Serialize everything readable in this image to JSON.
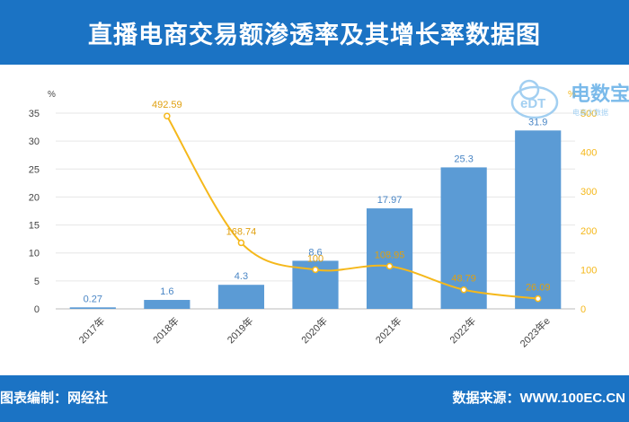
{
  "header": {
    "title": "直播电商交易额渗透率及其增长率数据图"
  },
  "watermark": {
    "logo_text": "eDT",
    "brand": "电数宝",
    "subtitle": "电商大数据"
  },
  "footer": {
    "left": "图表编制：网经社",
    "right": "数据来源：WWW.100EC.CN"
  },
  "colors": {
    "header": "#1b73c4",
    "bar": "#5b9bd5",
    "line": "#f5b81b",
    "label": "#4a86c5"
  },
  "chart_data": {
    "type": "bar",
    "categories": [
      "2017年",
      "2018年",
      "2019年",
      "2020年",
      "2021年",
      "2022年",
      "2023年e"
    ],
    "series": [
      {
        "type": "bar",
        "axis": "left",
        "values": [
          0.27,
          1.6,
          4.3,
          8.6,
          17.97,
          25.3,
          31.9
        ]
      },
      {
        "type": "line",
        "axis": "right",
        "values": [
          null,
          492.59,
          168.74,
          100,
          108.95,
          48.79,
          26.09
        ]
      }
    ],
    "left_axis": {
      "unit": "%",
      "ticks": [
        "0",
        "5",
        "10",
        "15",
        "20",
        "25",
        "30",
        "35"
      ],
      "range": [
        0,
        35
      ]
    },
    "right_axis": {
      "unit": "%",
      "ticks": [
        "0",
        "100",
        "200",
        "300",
        "400",
        "500"
      ],
      "range": [
        0,
        500
      ]
    },
    "bar_labels": [
      "0.27",
      "1.6",
      "4.3",
      "8.6",
      "17.97",
      "25.3",
      "31.9"
    ],
    "line_labels": [
      "",
      "492.59",
      "168.74",
      "100",
      "108.95",
      "48.79",
      "26.09"
    ],
    "grid": true
  }
}
